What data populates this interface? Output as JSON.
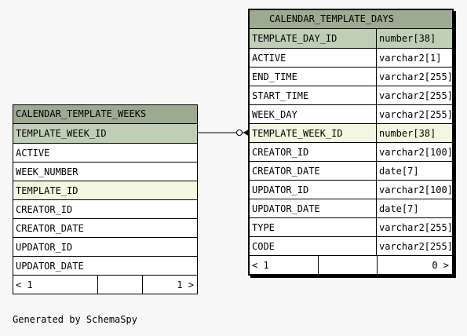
{
  "tables": {
    "weeks": {
      "name": "CALENDAR_TEMPLATE_WEEKS",
      "columns": [
        {
          "name": "TEMPLATE_WEEK_ID",
          "kind": "pk"
        },
        {
          "name": "ACTIVE",
          "kind": "normal"
        },
        {
          "name": "WEEK_NUMBER",
          "kind": "normal"
        },
        {
          "name": "TEMPLATE_ID",
          "kind": "fk"
        },
        {
          "name": "CREATOR_ID",
          "kind": "normal"
        },
        {
          "name": "CREATOR_DATE",
          "kind": "normal"
        },
        {
          "name": "UPDATOR_ID",
          "kind": "normal"
        },
        {
          "name": "UPDATOR_DATE",
          "kind": "normal"
        }
      ],
      "footer": {
        "parents": "< 1",
        "middle": "",
        "children": "1 >"
      }
    },
    "days": {
      "name": "CALENDAR_TEMPLATE_DAYS",
      "columns": [
        {
          "name": "TEMPLATE_DAY_ID",
          "type": "number[38]",
          "kind": "pk"
        },
        {
          "name": "ACTIVE",
          "type": "varchar2[1]",
          "kind": "normal"
        },
        {
          "name": "END_TIME",
          "type": "varchar2[255]",
          "kind": "normal"
        },
        {
          "name": "START_TIME",
          "type": "varchar2[255]",
          "kind": "normal"
        },
        {
          "name": "WEEK_DAY",
          "type": "varchar2[255]",
          "kind": "normal"
        },
        {
          "name": "TEMPLATE_WEEK_ID",
          "type": "number[38]",
          "kind": "fk"
        },
        {
          "name": "CREATOR_ID",
          "type": "varchar2[100]",
          "kind": "normal"
        },
        {
          "name": "CREATOR_DATE",
          "type": "date[7]",
          "kind": "normal"
        },
        {
          "name": "UPDATOR_ID",
          "type": "varchar2[100]",
          "kind": "normal"
        },
        {
          "name": "UPDATOR_DATE",
          "type": "date[7]",
          "kind": "normal"
        },
        {
          "name": "TYPE",
          "type": "varchar2[255]",
          "kind": "normal"
        },
        {
          "name": "CODE",
          "type": "varchar2[255]",
          "kind": "normal"
        }
      ],
      "footer": {
        "parents": "< 1",
        "middle": "",
        "children": "0 >"
      }
    }
  },
  "relationship": {
    "from": "CALENDAR_TEMPLATE_WEEKS.TEMPLATE_WEEK_ID",
    "to": "CALENDAR_TEMPLATE_DAYS.TEMPLATE_WEEK_ID"
  },
  "generated_by": "Generated by SchemaSpy"
}
